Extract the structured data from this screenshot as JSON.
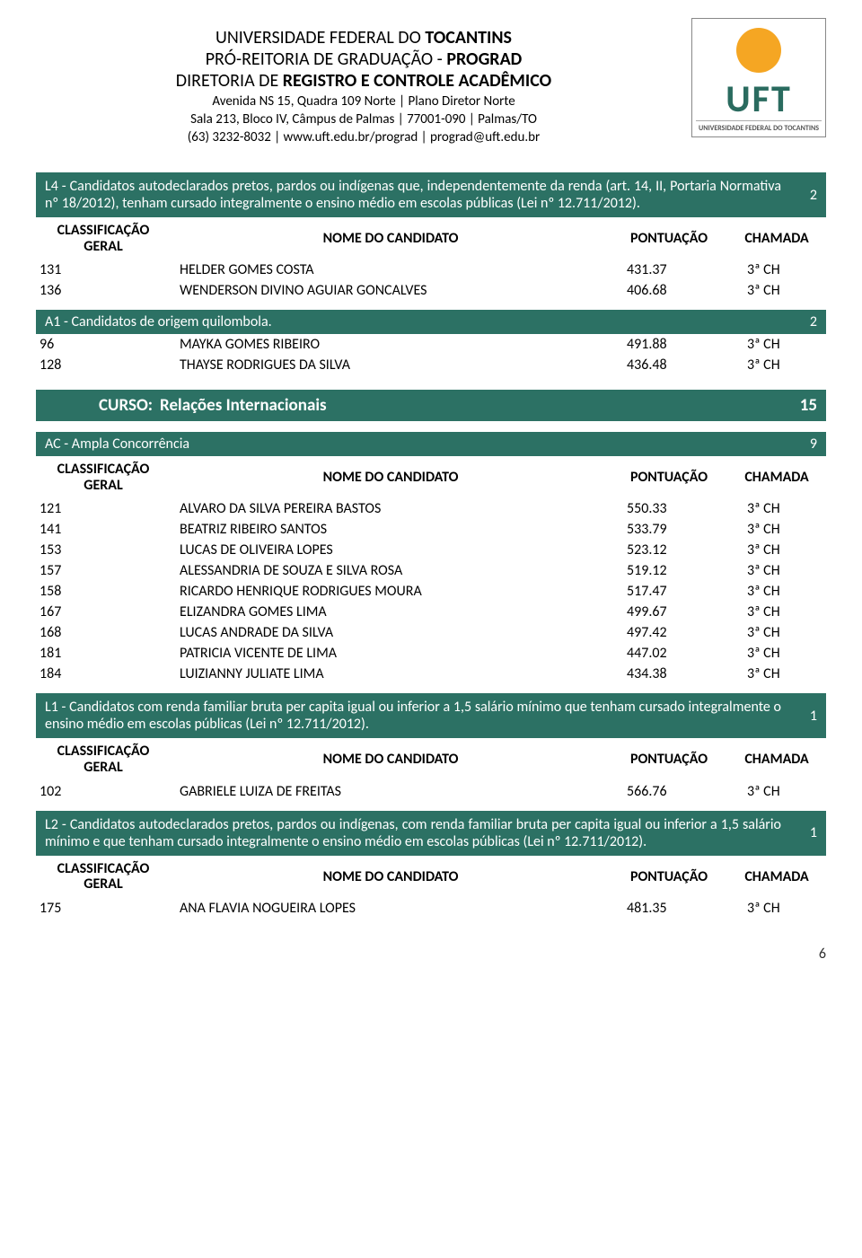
{
  "header": {
    "line1_a": "UNIVERSIDADE FEDERAL DO ",
    "line1_b": "TOCANTINS",
    "line2_a": "PRÓ-REITORIA DE GRADUAÇÃO - ",
    "line2_b": "PROGRAD",
    "line3_a": "DIRETORIA DE ",
    "line3_b": "REGISTRO E CONTROLE ACADÊMICO",
    "addr1": "Avenida NS 15, Quadra 109 Norte | Plano Diretor Norte",
    "addr2": "Sala 213, Bloco IV, Câmpus de Palmas | 77001-090 | Palmas/TO",
    "addr3": "(63) 3232-8032 | www.uft.edu.br/prograd | prograd@uft.edu.br"
  },
  "logo": {
    "word": "UFT",
    "caption": "UNIVERSIDADE FEDERAL DO TOCANTINS"
  },
  "columns": {
    "class_l1": "CLASSIFICAÇÃO",
    "class_l2": "GERAL",
    "name": "NOME DO CANDIDATO",
    "score": "PONTUAÇÃO",
    "call": "CHAMADA"
  },
  "l4": {
    "desc": "L4 - Candidatos autodeclarados pretos, pardos ou indígenas que, independentemente da renda (art. 14, II, Portaria Normativa nº 18/2012), tenham cursado integralmente o ensino médio em escolas públicas (Lei nº 12.711/2012).",
    "count": "2",
    "rows": [
      {
        "class": "131",
        "name": "HELDER GOMES COSTA",
        "score": "431.37",
        "call": "3ª CH"
      },
      {
        "class": "136",
        "name": "WENDERSON DIVINO AGUIAR GONCALVES",
        "score": "406.68",
        "call": "3ª CH"
      }
    ]
  },
  "a1": {
    "desc": "A1 - Candidatos de origem quilombola.",
    "count": "2",
    "rows": [
      {
        "class": "96",
        "name": "MAYKA GOMES RIBEIRO",
        "score": "491.88",
        "call": "3ª CH"
      },
      {
        "class": "128",
        "name": "THAYSE RODRIGUES DA SILVA",
        "score": "436.48",
        "call": "3ª CH"
      }
    ]
  },
  "course": {
    "label": "CURSO:",
    "name": "Relações Internacionais",
    "count": "15"
  },
  "ac": {
    "desc": "AC - Ampla Concorrência",
    "count": "9",
    "rows": [
      {
        "class": "121",
        "name": "ALVARO DA SILVA PEREIRA BASTOS",
        "score": "550.33",
        "call": "3ª CH"
      },
      {
        "class": "141",
        "name": "BEATRIZ RIBEIRO SANTOS",
        "score": "533.79",
        "call": "3ª CH"
      },
      {
        "class": "153",
        "name": "LUCAS DE OLIVEIRA LOPES",
        "score": "523.12",
        "call": "3ª CH"
      },
      {
        "class": "157",
        "name": "ALESSANDRIA DE SOUZA E SILVA ROSA",
        "score": "519.12",
        "call": "3ª CH"
      },
      {
        "class": "158",
        "name": "RICARDO HENRIQUE RODRIGUES MOURA",
        "score": "517.47",
        "call": "3ª CH"
      },
      {
        "class": "167",
        "name": "ELIZANDRA GOMES LIMA",
        "score": "499.67",
        "call": "3ª CH"
      },
      {
        "class": "168",
        "name": "LUCAS ANDRADE DA SILVA",
        "score": "497.42",
        "call": "3ª CH"
      },
      {
        "class": "181",
        "name": "PATRICIA VICENTE DE LIMA",
        "score": "447.02",
        "call": "3ª CH"
      },
      {
        "class": "184",
        "name": "LUIZIANNY JULIATE LIMA",
        "score": "434.38",
        "call": "3ª CH"
      }
    ]
  },
  "l1": {
    "desc": "L1 - Candidatos com renda familiar bruta per capita igual ou inferior a 1,5 salário mínimo que tenham cursado integralmente o ensino médio em escolas públicas (Lei nº 12.711/2012).",
    "count": "1",
    "rows": [
      {
        "class": "102",
        "name": "GABRIELE LUIZA DE FREITAS",
        "score": "566.76",
        "call": "3ª CH"
      }
    ]
  },
  "l2": {
    "desc": "L2 - Candidatos autodeclarados pretos, pardos ou indígenas, com renda familiar bruta per capita igual ou inferior a 1,5 salário mínimo e que tenham cursado integralmente o ensino médio em escolas públicas (Lei nº 12.711/2012).",
    "count": "1",
    "rows": [
      {
        "class": "175",
        "name": "ANA FLAVIA NOGUEIRA LOPES",
        "score": "481.35",
        "call": "3ª CH"
      }
    ]
  },
  "page": "6"
}
